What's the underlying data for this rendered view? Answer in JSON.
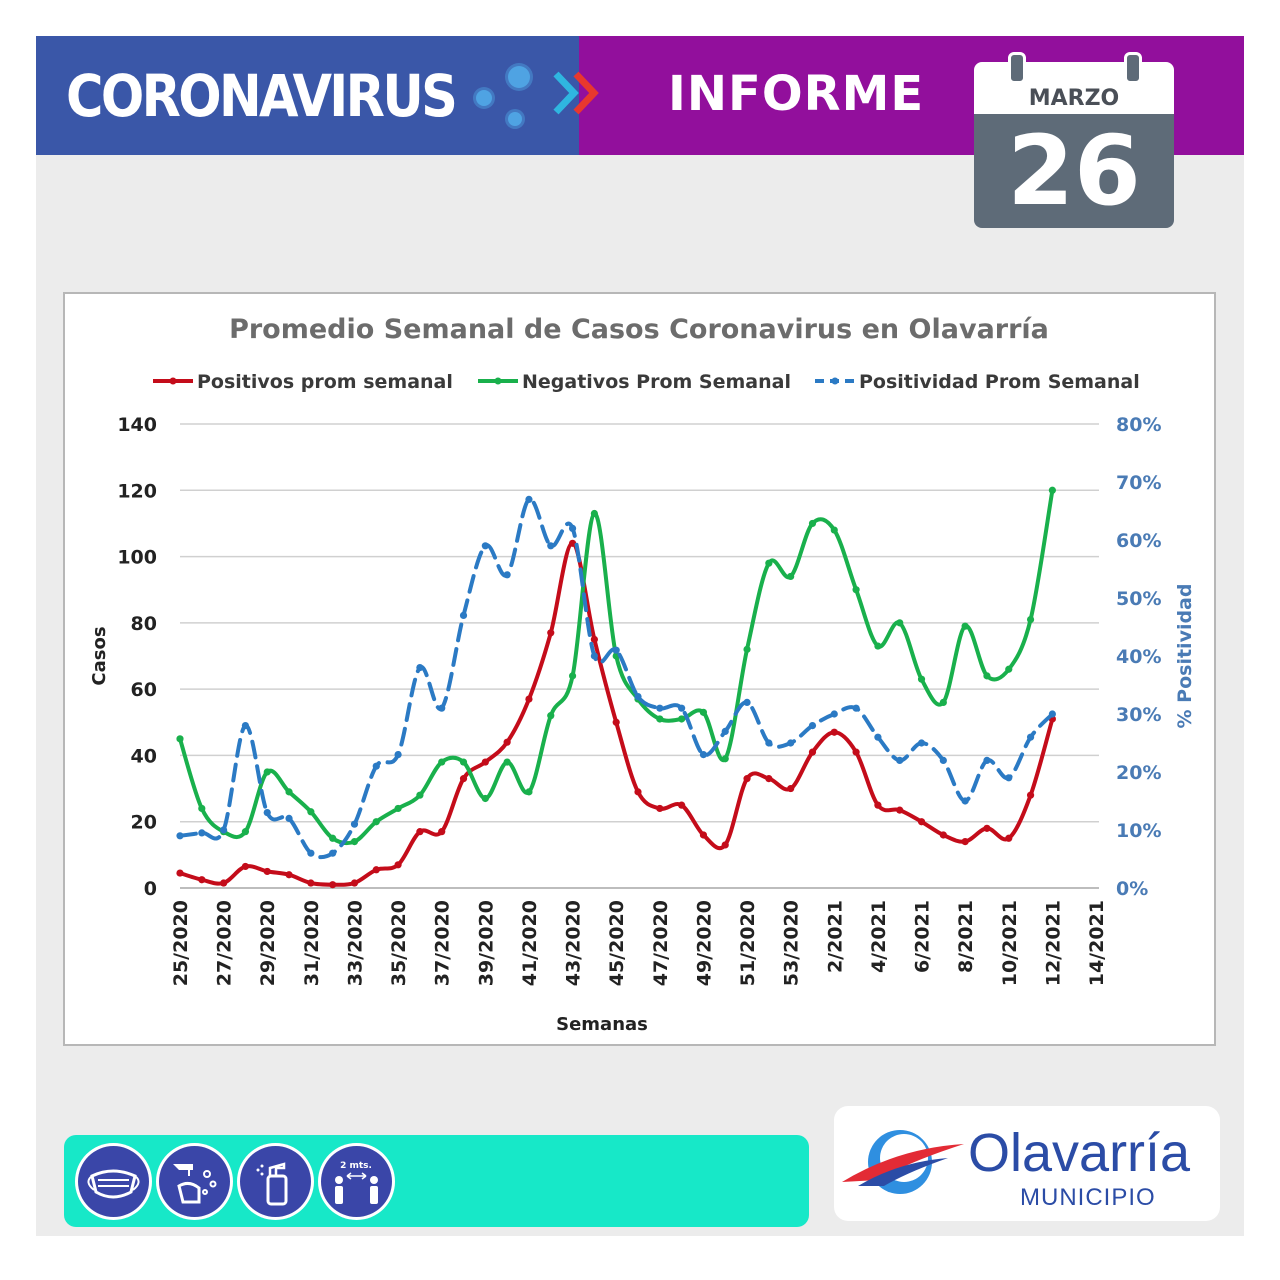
{
  "header": {
    "title": "CORONAVIRUS",
    "section": "INFORME",
    "calendar": {
      "month": "MARZO",
      "day": "26"
    }
  },
  "colors": {
    "banner_blue": "#3a57a8",
    "banner_purple": "#920f9c",
    "positivos": "#c40c1a",
    "negativos": "#19b04c",
    "positividad": "#2b7ac4",
    "footer_teal": "#17e8c8",
    "brand_blue": "#2b4ca6"
  },
  "icons": [
    "virus-icon",
    "chevron-right-icon",
    "calendar-icon",
    "mask-icon",
    "handwash-icon",
    "sanitizer-icon",
    "social-distance-icon"
  ],
  "distance_label": "2 mts.",
  "logo": {
    "name": "Olavarría",
    "sub": "MUNICIPIO"
  },
  "chart_data": {
    "type": "line",
    "title": "Promedio Semanal de Casos Coronavirus en Olavarría",
    "xlabel": "Semanas",
    "ylabel": "Casos",
    "y2label": "% Positividad",
    "ylim": [
      0,
      140
    ],
    "y2lim": [
      0,
      80
    ],
    "yticks": [
      "0",
      "20",
      "40",
      "60",
      "80",
      "100",
      "120",
      "140"
    ],
    "y2ticks": [
      "0%",
      "10%",
      "20%",
      "30%",
      "40%",
      "50%",
      "60%",
      "70%",
      "80%"
    ],
    "grid": true,
    "legend": "top",
    "x": [
      "25/2020",
      "26/2020",
      "27/2020",
      "28/2020",
      "29/2020",
      "30/2020",
      "31/2020",
      "32/2020",
      "33/2020",
      "34/2020",
      "35/2020",
      "36/2020",
      "37/2020",
      "38/2020",
      "39/2020",
      "40/2020",
      "41/2020",
      "42/2020",
      "43/2020",
      "44/2020",
      "45/2020",
      "46/2020",
      "47/2020",
      "48/2020",
      "49/2020",
      "50/2020",
      "51/2020",
      "52/2020",
      "53/2020",
      "1/2021",
      "2/2021",
      "3/2021",
      "4/2021",
      "5/2021",
      "6/2021",
      "7/2021",
      "8/2021",
      "9/2021",
      "10/2021",
      "11/2021",
      "12/2021",
      "13/2021",
      "14/2021"
    ],
    "xticks": [
      "25/2020",
      "27/2020",
      "29/2020",
      "31/2020",
      "33/2020",
      "35/2020",
      "37/2020",
      "39/2020",
      "41/2020",
      "43/2020",
      "45/2020",
      "47/2020",
      "49/2020",
      "51/2020",
      "53/2020",
      "2/2021",
      "4/2021",
      "6/2021",
      "8/2021",
      "10/2021",
      "12/2021",
      "14/2021"
    ],
    "series": [
      {
        "name": "Positivos prom semanal",
        "axis": "left",
        "style": "solid",
        "values": [
          4.5,
          2.5,
          1.5,
          6.5,
          5,
          4,
          1.5,
          1,
          1.5,
          5.5,
          7,
          17,
          17,
          33,
          38,
          44,
          57,
          77,
          104,
          75,
          50,
          29,
          24,
          25,
          16,
          13,
          33,
          33,
          30,
          41,
          47,
          41,
          25,
          23.5,
          20,
          16,
          14,
          18,
          15,
          28,
          51,
          null,
          null
        ]
      },
      {
        "name": "Negativos Prom Semanal",
        "axis": "left",
        "style": "solid",
        "values": [
          45,
          24,
          17,
          17,
          35,
          29,
          23,
          15,
          14,
          20,
          24,
          28,
          38,
          38,
          27,
          38,
          29,
          52,
          64,
          113,
          70,
          57,
          51,
          51,
          53,
          39,
          72,
          98,
          94,
          110,
          108,
          90,
          73,
          80,
          63,
          56,
          79,
          64,
          66,
          81,
          120,
          null,
          null
        ]
      },
      {
        "name": "Positividad Prom Semanal",
        "axis": "right",
        "style": "dashed",
        "values": [
          9,
          9.5,
          10,
          28,
          13,
          12,
          6,
          6,
          11,
          21,
          23,
          38,
          31,
          47,
          59,
          54,
          67,
          59,
          62,
          40,
          41,
          33,
          31,
          31,
          23,
          27,
          32,
          25,
          25,
          28,
          30,
          31,
          26,
          22,
          25,
          22,
          15,
          22,
          19,
          26,
          30,
          null,
          null
        ]
      }
    ]
  }
}
